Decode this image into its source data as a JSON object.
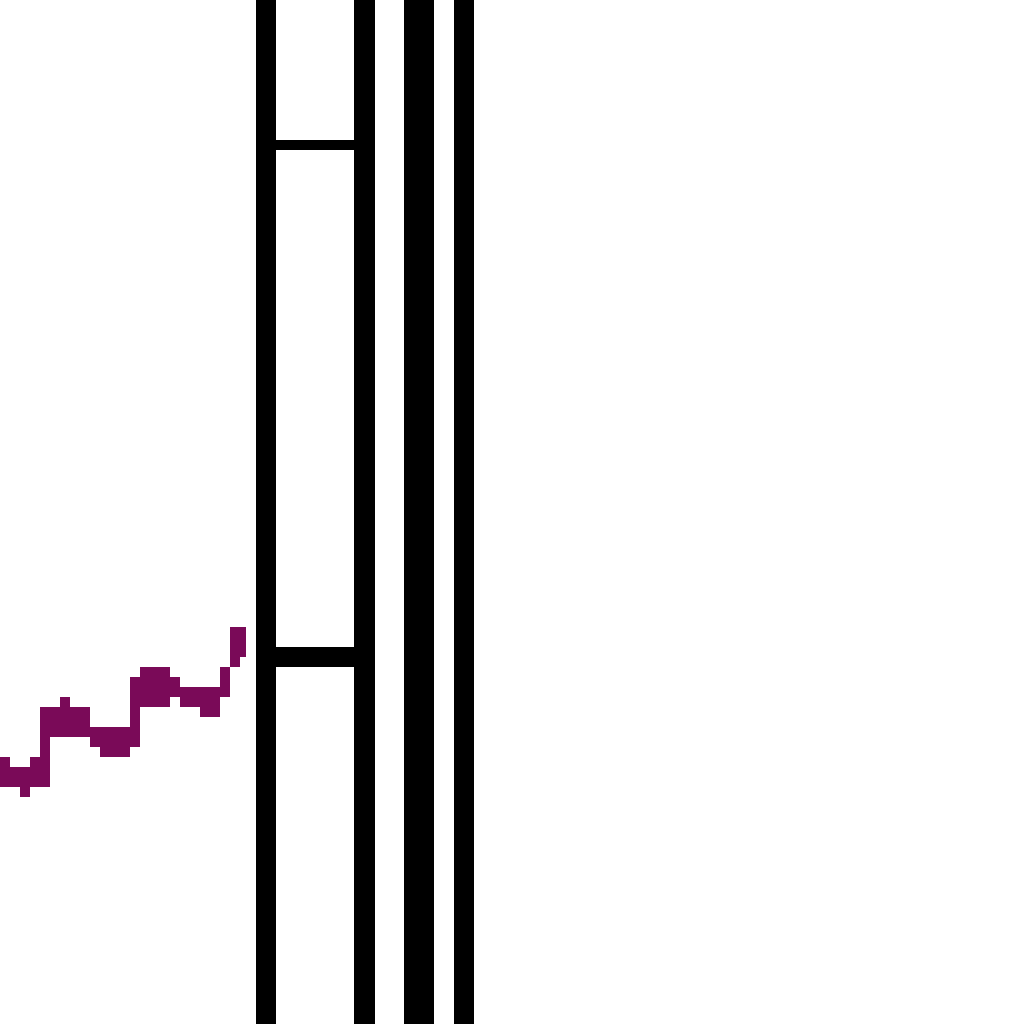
{
  "scene": {
    "background_color": "#ffffff",
    "wall_color": "#000000",
    "trail_color": "#7a0a58"
  },
  "walls": [
    {
      "name": "wall-left-outer"
    },
    {
      "name": "wall-left-inner"
    },
    {
      "name": "wall-right-thick"
    },
    {
      "name": "wall-right-thin"
    }
  ],
  "rungs": [
    {
      "name": "rung-upper"
    },
    {
      "name": "rung-lower"
    }
  ]
}
